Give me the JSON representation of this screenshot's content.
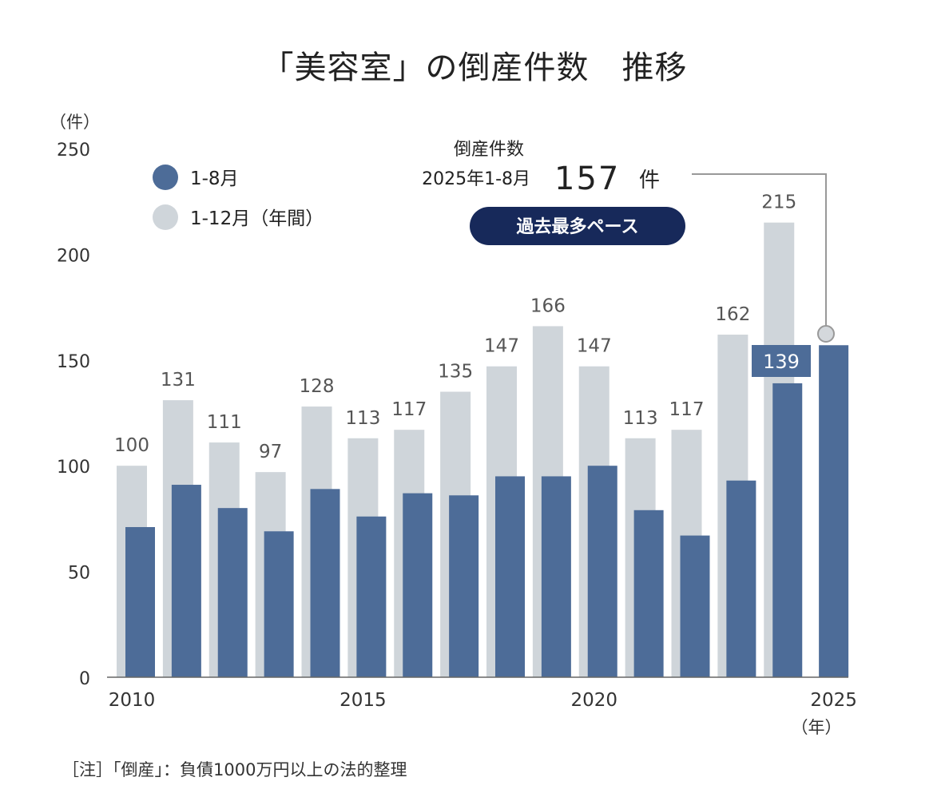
{
  "title": "「美容室」の倒産件数　推移",
  "unit_label": "（件）",
  "x_unit_label": "（年）",
  "legend": {
    "jan_aug": "1-8月",
    "full_year": "1-12月（年間）"
  },
  "callout": {
    "line1": "倒産件数",
    "line2": "2025年1-8月",
    "value": "157",
    "unit": "件",
    "badge": "過去最多ペース"
  },
  "highlight_label": "139",
  "note": "［注］「倒産」：負債1000万円以上の法的整理",
  "colors": {
    "jan_aug": "#4d6c98",
    "full_year": "#cfd5da",
    "badge_bg": "#17295a",
    "highlight_label_bg": "#4d6c98",
    "callout_line": "#999999"
  },
  "chart_data": {
    "type": "bar",
    "x": [
      2010,
      2011,
      2012,
      2013,
      2014,
      2015,
      2016,
      2017,
      2018,
      2019,
      2020,
      2021,
      2022,
      2023,
      2024,
      2025
    ],
    "x_tick_labels": [
      "2010",
      "2015",
      "2020",
      "2025"
    ],
    "y_ticks": [
      0,
      50,
      100,
      150,
      200,
      250
    ],
    "ylim": [
      0,
      250
    ],
    "series": [
      {
        "name": "1-12月（年間）",
        "values": [
          100,
          131,
          111,
          97,
          128,
          113,
          117,
          135,
          147,
          166,
          147,
          113,
          117,
          162,
          215,
          null
        ],
        "labels": [
          "100",
          "131",
          "111",
          "97",
          "128",
          "113",
          "117",
          "135",
          "147",
          "166",
          "147",
          "113",
          "117",
          "162",
          "215",
          ""
        ]
      },
      {
        "name": "1-8月",
        "values": [
          71,
          91,
          80,
          69,
          89,
          76,
          87,
          86,
          95,
          95,
          100,
          79,
          67,
          93,
          139,
          157
        ]
      }
    ],
    "grid": false,
    "legend_position": "top-left"
  }
}
